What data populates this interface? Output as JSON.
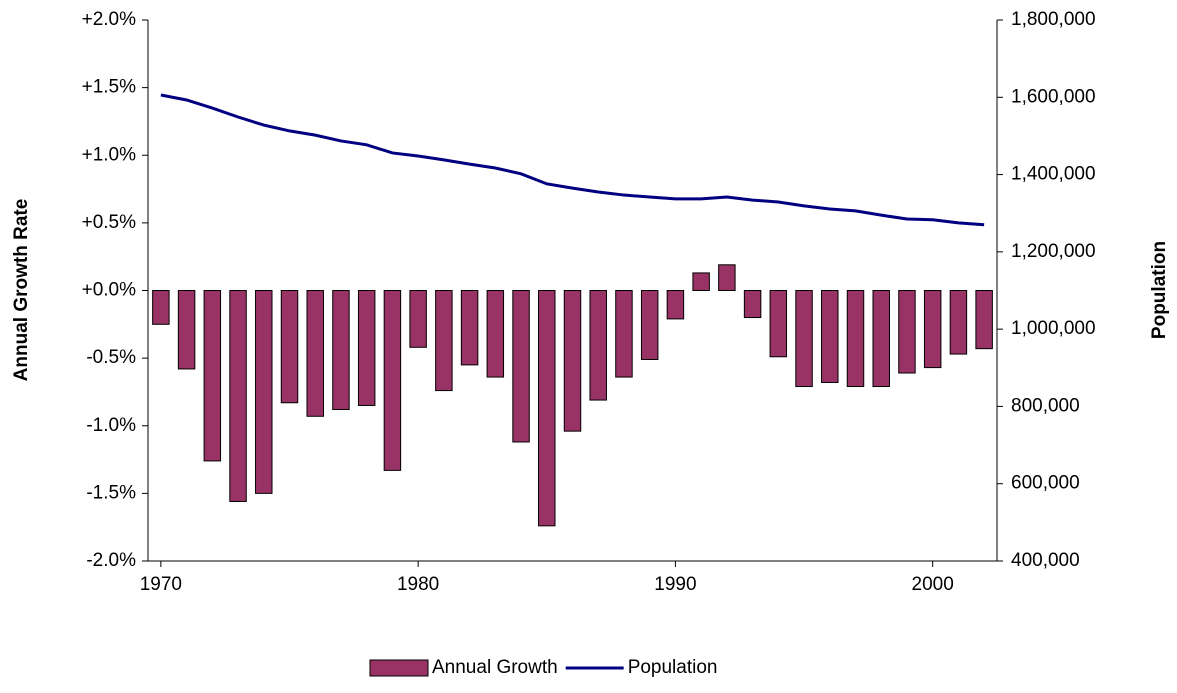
{
  "chart_data": {
    "type": "bar-line",
    "x": [
      1970,
      1971,
      1972,
      1973,
      1974,
      1975,
      1976,
      1977,
      1978,
      1979,
      1980,
      1981,
      1982,
      1983,
      1984,
      1985,
      1986,
      1987,
      1988,
      1989,
      1990,
      1991,
      1992,
      1993,
      1994,
      1995,
      1996,
      1997,
      1998,
      1999,
      2000,
      2001,
      2002
    ],
    "xlim": [
      1969.5,
      2002.5
    ],
    "xticks": [
      1970,
      1980,
      1990,
      2000
    ],
    "y_label": "Annual Growth Rate",
    "y2_label": "Population",
    "ylim": [
      -2,
      2
    ],
    "yticks": [
      {
        "value": -2,
        "label": "-2.0%"
      },
      {
        "value": -1.5,
        "label": "-1.5%"
      },
      {
        "value": -1,
        "label": "-1.0%"
      },
      {
        "value": -0.5,
        "label": "-0.5%"
      },
      {
        "value": 0,
        "label": "+0.0%"
      },
      {
        "value": 0.5,
        "label": "+0.5%"
      },
      {
        "value": 1,
        "label": "+1.0%"
      },
      {
        "value": 1.5,
        "label": "+1.5%"
      },
      {
        "value": 2,
        "label": "+2.0%"
      }
    ],
    "y2lim": [
      400000,
      1800000
    ],
    "y2ticks": [
      {
        "value": 400000,
        "label": "400,000"
      },
      {
        "value": 600000,
        "label": "600,000"
      },
      {
        "value": 800000,
        "label": "800,000"
      },
      {
        "value": 1000000,
        "label": "1,000,000"
      },
      {
        "value": 1200000,
        "label": "1,200,000"
      },
      {
        "value": 1400000,
        "label": "1,400,000"
      },
      {
        "value": 1600000,
        "label": "1,600,000"
      },
      {
        "value": 1800000,
        "label": "1,800,000"
      }
    ],
    "legend": "bottom",
    "series": [
      {
        "name": "Annual Growth",
        "type": "bar",
        "color": "#993366",
        "axis": "y",
        "values": [
          -0.25,
          -0.58,
          -1.26,
          -1.56,
          -1.5,
          -0.83,
          -0.93,
          -0.88,
          -0.85,
          -1.33,
          -0.42,
          -0.74,
          -0.55,
          -0.64,
          -1.12,
          -1.74,
          -1.04,
          -0.81,
          -0.64,
          -0.51,
          -0.21,
          0.13,
          0.19,
          -0.2,
          -0.49,
          -0.71,
          -0.68,
          -0.71,
          -0.71,
          -0.61,
          -0.57,
          -0.47,
          -0.43
        ]
      },
      {
        "name": "Population",
        "type": "line",
        "color": "#000080",
        "axis": "y2",
        "values": [
          1606000,
          1593000,
          1572000,
          1549000,
          1528000,
          1513000,
          1502000,
          1487000,
          1477000,
          1456000,
          1448000,
          1438000,
          1427000,
          1417000,
          1402000,
          1376000,
          1365000,
          1355000,
          1347000,
          1342000,
          1337000,
          1337000,
          1342000,
          1334000,
          1329000,
          1319000,
          1311000,
          1306000,
          1295000,
          1285000,
          1283000,
          1275000,
          1270000
        ]
      }
    ]
  }
}
